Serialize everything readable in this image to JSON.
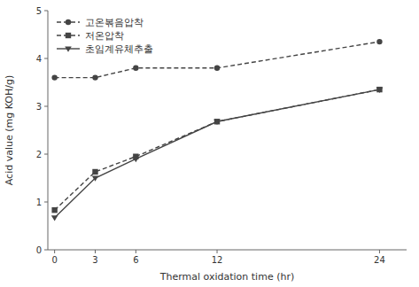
{
  "chart_data": {
    "type": "line",
    "xlabel": "Thermal oxidation time (hr)",
    "ylabel": "Acid value (mg KOH/g)",
    "x": [
      0,
      3,
      6,
      12,
      24
    ],
    "series": [
      {
        "name": "고온볶음압착",
        "color": "#444444",
        "marker": "circle",
        "line_style": "dashed",
        "values": [
          3.6,
          3.6,
          3.8,
          3.8,
          4.35
        ]
      },
      {
        "name": "저온압착",
        "color": "#444444",
        "marker": "square",
        "line_style": "dashed",
        "values": [
          0.83,
          1.63,
          1.95,
          2.68,
          3.35
        ]
      },
      {
        "name": "초임계유체추출",
        "color": "#444444",
        "marker": "triangle-down",
        "line_style": "solid",
        "values": [
          0.67,
          1.5,
          1.9,
          2.68,
          3.35
        ]
      }
    ],
    "xlim": [
      -0.5,
      26
    ],
    "ylim": [
      0,
      5
    ],
    "xticks": [
      0,
      3,
      6,
      12,
      24
    ],
    "yticks": [
      0,
      1,
      2,
      3,
      4,
      5
    ],
    "legend": "upper left",
    "grid": false
  }
}
